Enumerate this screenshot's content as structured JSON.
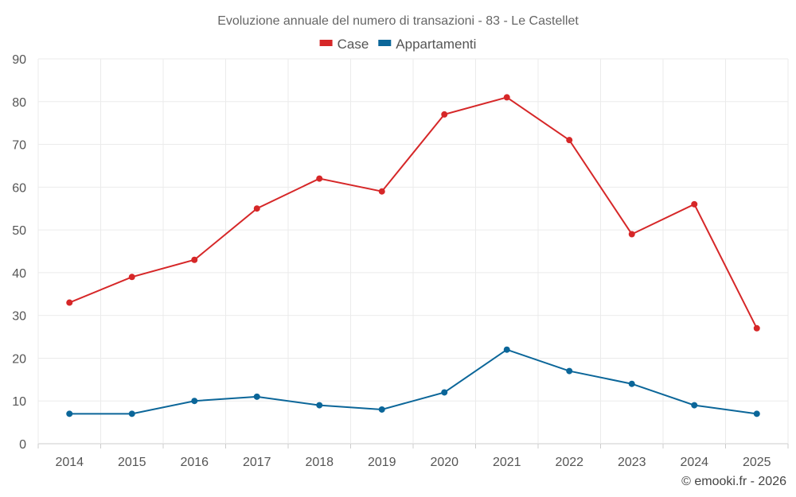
{
  "chart_data": {
    "type": "line",
    "title": "Evoluzione annuale del numero di transazioni - 83 - Le Castellet",
    "categories": [
      "2014",
      "2015",
      "2016",
      "2017",
      "2018",
      "2019",
      "2020",
      "2021",
      "2022",
      "2023",
      "2024",
      "2025"
    ],
    "series": [
      {
        "name": "Case",
        "color": "#d62728",
        "values": [
          33,
          39,
          43,
          55,
          62,
          59,
          77,
          81,
          71,
          49,
          56,
          27
        ]
      },
      {
        "name": "Appartamenti",
        "color": "#0b6699",
        "values": [
          7,
          7,
          10,
          11,
          9,
          8,
          12,
          22,
          17,
          14,
          9,
          7
        ]
      }
    ],
    "ylim": [
      0,
      90
    ],
    "yticks": [
      0,
      10,
      20,
      30,
      40,
      50,
      60,
      70,
      80,
      90
    ],
    "xlabel": "",
    "ylabel": "",
    "grid": true,
    "legend": "top-center"
  },
  "credit": "© emooki.fr - 2026"
}
